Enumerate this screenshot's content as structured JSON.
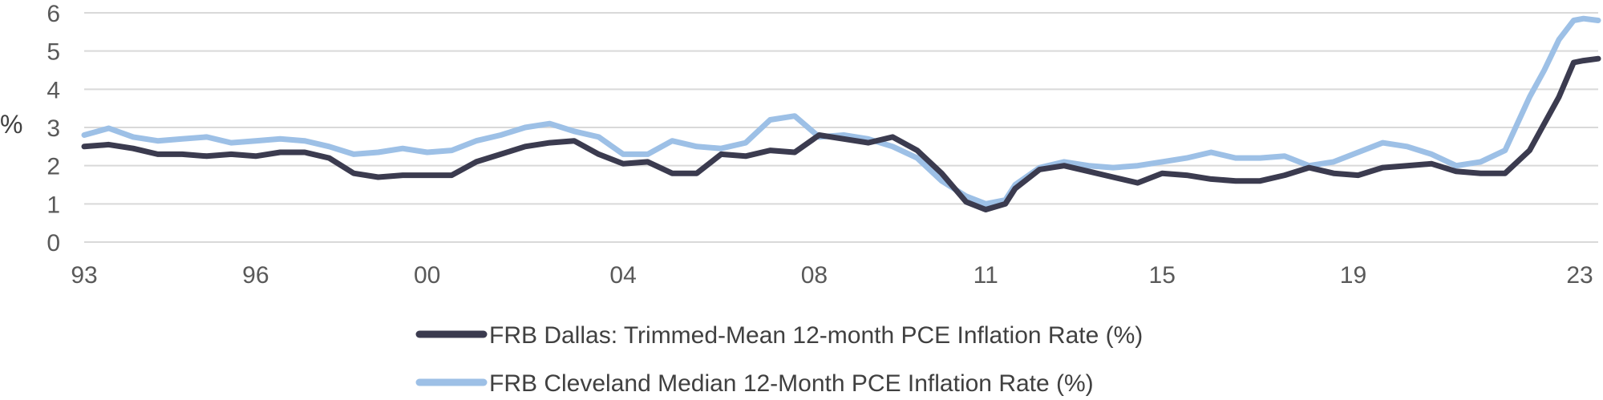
{
  "chart_data": {
    "type": "line",
    "title": "",
    "xlabel": "",
    "ylabel": "%",
    "ylim": [
      0,
      6
    ],
    "xlim": [
      1993,
      2023.9
    ],
    "y_ticks": [
      "0",
      "1",
      "2",
      "3",
      "4",
      "5",
      "6"
    ],
    "x_ticks": [
      {
        "label": "93",
        "value": 1993
      },
      {
        "label": "96",
        "value": 1996.5
      },
      {
        "label": "00",
        "value": 2000
      },
      {
        "label": "04",
        "value": 2004
      },
      {
        "label": "08",
        "value": 2007.9
      },
      {
        "label": "11",
        "value": 2011.4
      },
      {
        "label": "15",
        "value": 2015
      },
      {
        "label": "19",
        "value": 2018.9
      },
      {
        "label": "23",
        "value": 2023.9
      }
    ],
    "grid": true,
    "legend_position": "bottom",
    "series": [
      {
        "name": "FRB Dallas: Trimmed-Mean 12-month PCE Inflation Rate (%)",
        "color": "#3b3b4f",
        "points": [
          [
            1993.0,
            2.5
          ],
          [
            1993.5,
            2.55
          ],
          [
            1994.0,
            2.45
          ],
          [
            1994.5,
            2.3
          ],
          [
            1995.0,
            2.3
          ],
          [
            1995.5,
            2.25
          ],
          [
            1996.0,
            2.3
          ],
          [
            1996.5,
            2.25
          ],
          [
            1997.0,
            2.35
          ],
          [
            1997.5,
            2.35
          ],
          [
            1998.0,
            2.2
          ],
          [
            1998.5,
            1.8
          ],
          [
            1999.0,
            1.7
          ],
          [
            1999.5,
            1.75
          ],
          [
            2000.0,
            1.75
          ],
          [
            2000.5,
            1.75
          ],
          [
            2001.0,
            2.1
          ],
          [
            2001.5,
            2.3
          ],
          [
            2002.0,
            2.5
          ],
          [
            2002.5,
            2.6
          ],
          [
            2003.0,
            2.65
          ],
          [
            2003.5,
            2.3
          ],
          [
            2004.0,
            2.05
          ],
          [
            2004.5,
            2.1
          ],
          [
            2005.0,
            1.8
          ],
          [
            2005.5,
            1.8
          ],
          [
            2006.0,
            2.3
          ],
          [
            2006.5,
            2.25
          ],
          [
            2007.0,
            2.4
          ],
          [
            2007.5,
            2.35
          ],
          [
            2008.0,
            2.8
          ],
          [
            2008.5,
            2.7
          ],
          [
            2009.0,
            2.6
          ],
          [
            2009.5,
            2.75
          ],
          [
            2010.0,
            2.4
          ],
          [
            2010.5,
            1.8
          ],
          [
            2011.0,
            1.05
          ],
          [
            2011.4,
            0.85
          ],
          [
            2011.8,
            1.0
          ],
          [
            2012.0,
            1.4
          ],
          [
            2012.5,
            1.9
          ],
          [
            2013.0,
            2.0
          ],
          [
            2013.5,
            1.85
          ],
          [
            2014.0,
            1.7
          ],
          [
            2014.5,
            1.55
          ],
          [
            2015.0,
            1.8
          ],
          [
            2015.5,
            1.75
          ],
          [
            2016.0,
            1.65
          ],
          [
            2016.5,
            1.6
          ],
          [
            2017.0,
            1.6
          ],
          [
            2017.5,
            1.75
          ],
          [
            2018.0,
            1.95
          ],
          [
            2018.5,
            1.8
          ],
          [
            2019.0,
            1.75
          ],
          [
            2019.5,
            1.95
          ],
          [
            2020.0,
            2.0
          ],
          [
            2020.5,
            2.05
          ],
          [
            2021.0,
            1.85
          ],
          [
            2021.5,
            1.8
          ],
          [
            2022.0,
            1.8
          ],
          [
            2022.5,
            2.4
          ],
          [
            2022.8,
            3.1
          ],
          [
            2023.1,
            3.8
          ],
          [
            2023.4,
            4.7
          ],
          [
            2023.6,
            4.75
          ],
          [
            2023.9,
            4.8
          ]
        ]
      },
      {
        "name": "FRB Cleveland Median 12-Month PCE Inflation Rate (%)",
        "color": "#9dc0e6",
        "points": [
          [
            1993.0,
            2.8
          ],
          [
            1993.5,
            2.98
          ],
          [
            1994.0,
            2.75
          ],
          [
            1994.5,
            2.65
          ],
          [
            1995.0,
            2.7
          ],
          [
            1995.5,
            2.75
          ],
          [
            1996.0,
            2.6
          ],
          [
            1996.5,
            2.65
          ],
          [
            1997.0,
            2.7
          ],
          [
            1997.5,
            2.65
          ],
          [
            1998.0,
            2.5
          ],
          [
            1998.5,
            2.3
          ],
          [
            1999.0,
            2.35
          ],
          [
            1999.5,
            2.45
          ],
          [
            2000.0,
            2.35
          ],
          [
            2000.5,
            2.4
          ],
          [
            2001.0,
            2.65
          ],
          [
            2001.5,
            2.8
          ],
          [
            2002.0,
            3.0
          ],
          [
            2002.5,
            3.1
          ],
          [
            2003.0,
            2.9
          ],
          [
            2003.5,
            2.75
          ],
          [
            2004.0,
            2.3
          ],
          [
            2004.5,
            2.3
          ],
          [
            2005.0,
            2.65
          ],
          [
            2005.5,
            2.5
          ],
          [
            2006.0,
            2.45
          ],
          [
            2006.5,
            2.6
          ],
          [
            2007.0,
            3.2
          ],
          [
            2007.5,
            3.3
          ],
          [
            2008.0,
            2.75
          ],
          [
            2008.5,
            2.8
          ],
          [
            2009.0,
            2.7
          ],
          [
            2009.5,
            2.5
          ],
          [
            2010.0,
            2.2
          ],
          [
            2010.5,
            1.6
          ],
          [
            2011.0,
            1.2
          ],
          [
            2011.4,
            1.0
          ],
          [
            2011.8,
            1.1
          ],
          [
            2012.0,
            1.5
          ],
          [
            2012.5,
            1.95
          ],
          [
            2013.0,
            2.1
          ],
          [
            2013.5,
            2.0
          ],
          [
            2014.0,
            1.95
          ],
          [
            2014.5,
            2.0
          ],
          [
            2015.0,
            2.1
          ],
          [
            2015.5,
            2.2
          ],
          [
            2016.0,
            2.35
          ],
          [
            2016.5,
            2.2
          ],
          [
            2017.0,
            2.2
          ],
          [
            2017.5,
            2.25
          ],
          [
            2018.0,
            2.0
          ],
          [
            2018.5,
            2.1
          ],
          [
            2019.0,
            2.35
          ],
          [
            2019.5,
            2.6
          ],
          [
            2020.0,
            2.5
          ],
          [
            2020.5,
            2.3
          ],
          [
            2021.0,
            2.0
          ],
          [
            2021.5,
            2.1
          ],
          [
            2022.0,
            2.4
          ],
          [
            2022.5,
            3.8
          ],
          [
            2022.8,
            4.5
          ],
          [
            2023.1,
            5.3
          ],
          [
            2023.4,
            5.8
          ],
          [
            2023.6,
            5.85
          ],
          [
            2023.9,
            5.8
          ]
        ]
      }
    ]
  }
}
